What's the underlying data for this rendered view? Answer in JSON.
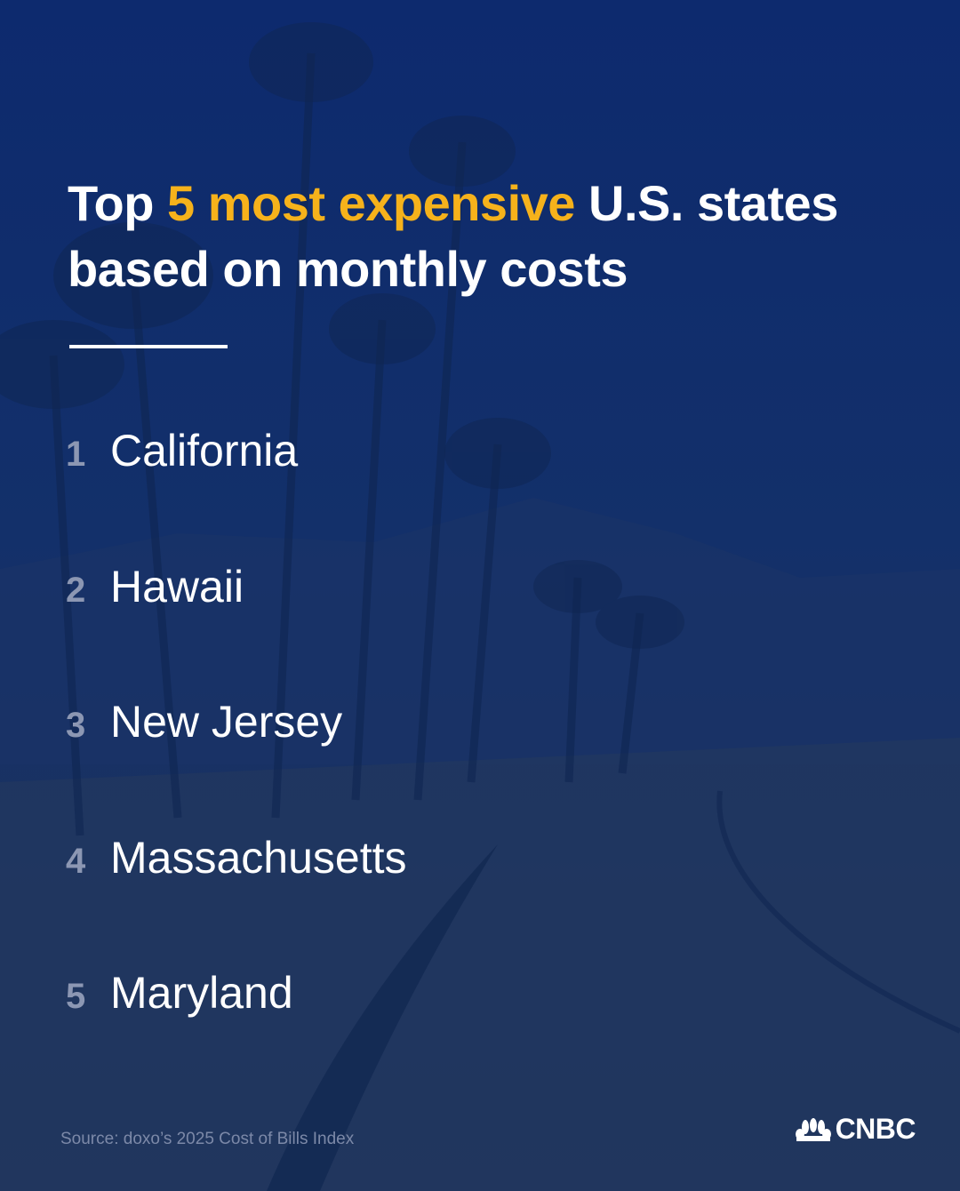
{
  "header": {
    "title": [
      "Top ",
      "5 most expensive",
      " U.S. states based on monthly costs"
    ]
  },
  "list": [
    {
      "rank": 1,
      "name": "California"
    },
    {
      "rank": 2,
      "name": "Hawaii"
    },
    {
      "rank": 3,
      "name": "New Jersey"
    },
    {
      "rank": 4,
      "name": "Massachusetts"
    },
    {
      "rank": 5,
      "name": "Maryland"
    }
  ],
  "footer": {
    "source": "Source: doxo’s 2025 Cost of Bills Index",
    "logo": "CNBC"
  }
}
